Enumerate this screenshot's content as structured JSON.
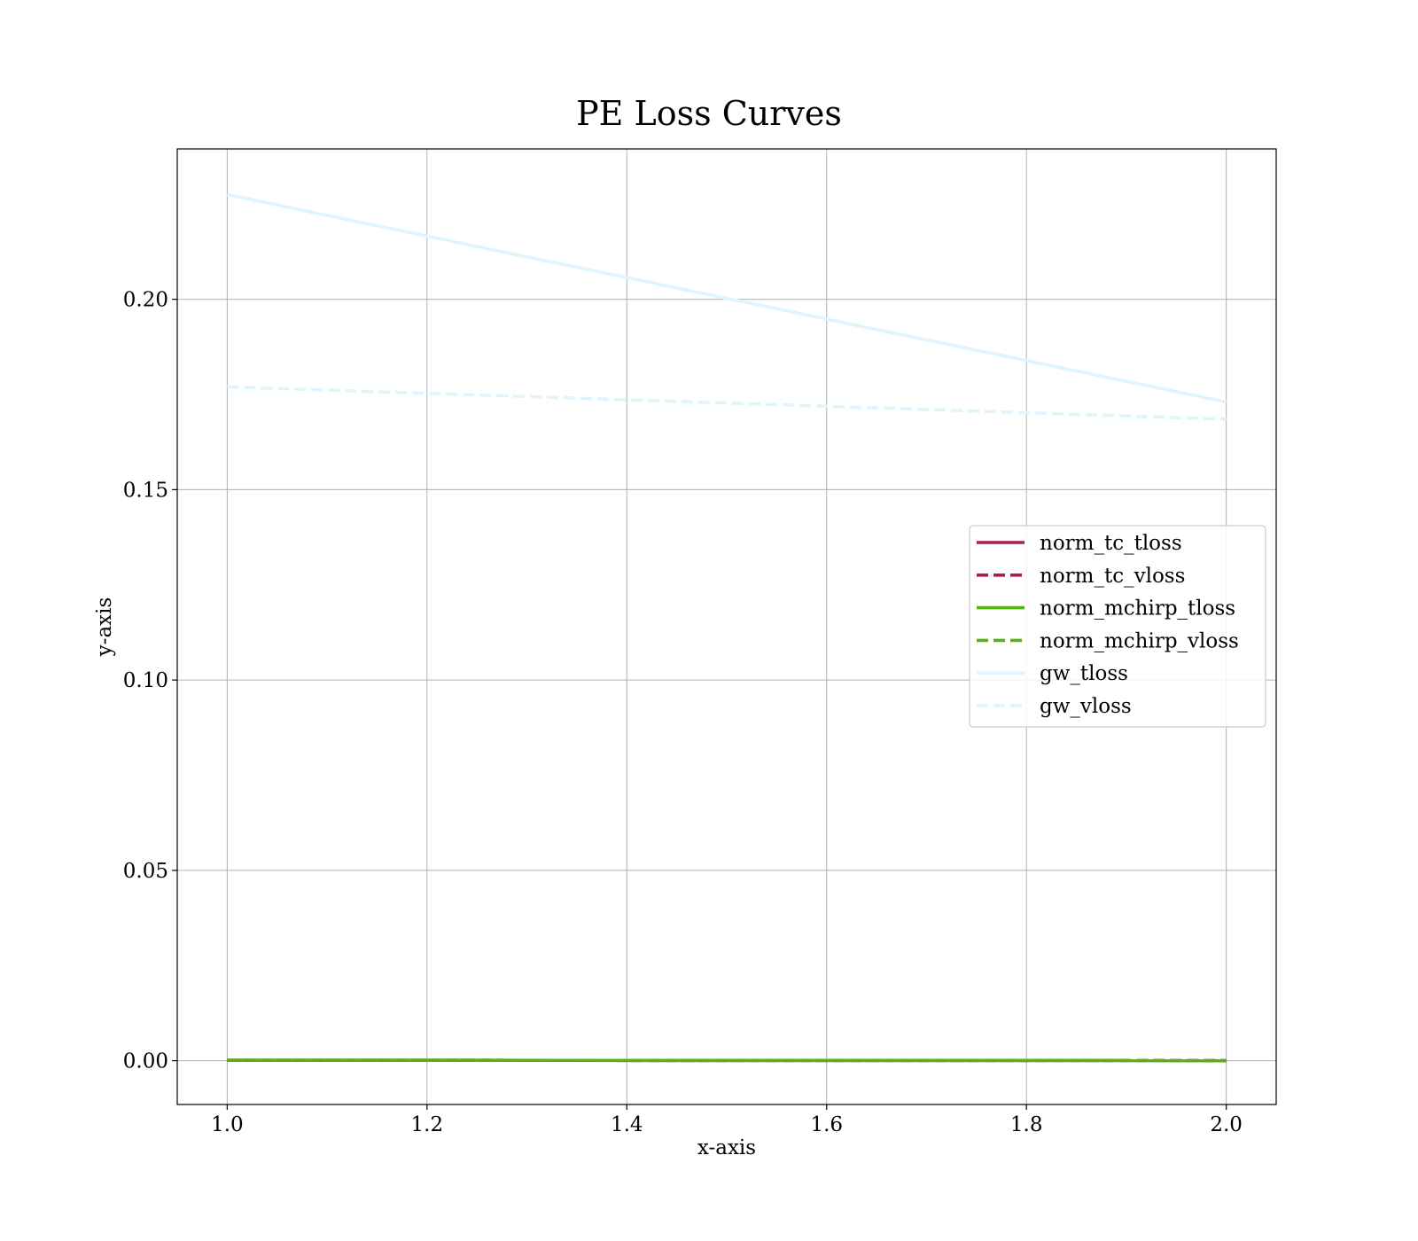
{
  "chart_data": {
    "type": "line",
    "title": "PE Loss Curves",
    "xlabel": "x-axis",
    "ylabel": "y-axis",
    "xlim": [
      0.95,
      2.05
    ],
    "ylim": [
      -0.0115,
      0.2395
    ],
    "x": [
      1.0,
      2.0
    ],
    "xticks": [
      {
        "value": 1.0,
        "label": "1.0"
      },
      {
        "value": 1.2,
        "label": "1.2"
      },
      {
        "value": 1.4,
        "label": "1.4"
      },
      {
        "value": 1.6,
        "label": "1.6"
      },
      {
        "value": 1.8,
        "label": "1.8"
      },
      {
        "value": 2.0,
        "label": "2.0"
      }
    ],
    "yticks": [
      {
        "value": 0.0,
        "label": "0.00"
      },
      {
        "value": 0.05,
        "label": "0.05"
      },
      {
        "value": 0.1,
        "label": "0.10"
      },
      {
        "value": 0.15,
        "label": "0.15"
      },
      {
        "value": 0.2,
        "label": "0.20"
      }
    ],
    "grid": true,
    "legend_position": "center-right",
    "series": [
      {
        "name": "norm_tc_tloss",
        "values": [
          0.0001,
          5e-05
        ],
        "color": "#b01c4c",
        "dash": "solid"
      },
      {
        "name": "norm_tc_vloss",
        "values": [
          0.0001,
          5e-05
        ],
        "color": "#b01c4c",
        "dash": "dashed"
      },
      {
        "name": "norm_mchirp_tloss",
        "values": [
          0.0001,
          5e-05
        ],
        "color": "#55b317",
        "dash": "solid"
      },
      {
        "name": "norm_mchirp_vloss",
        "values": [
          0.0001,
          5e-05
        ],
        "color": "#55b317",
        "dash": "dashed"
      },
      {
        "name": "gw_tloss",
        "values": [
          0.2275,
          0.173
        ],
        "color": "#dff4fc",
        "dash": "solid"
      },
      {
        "name": "gw_vloss",
        "values": [
          0.177,
          0.1685
        ],
        "color": "#dff4fc",
        "dash": "dashed"
      }
    ]
  }
}
